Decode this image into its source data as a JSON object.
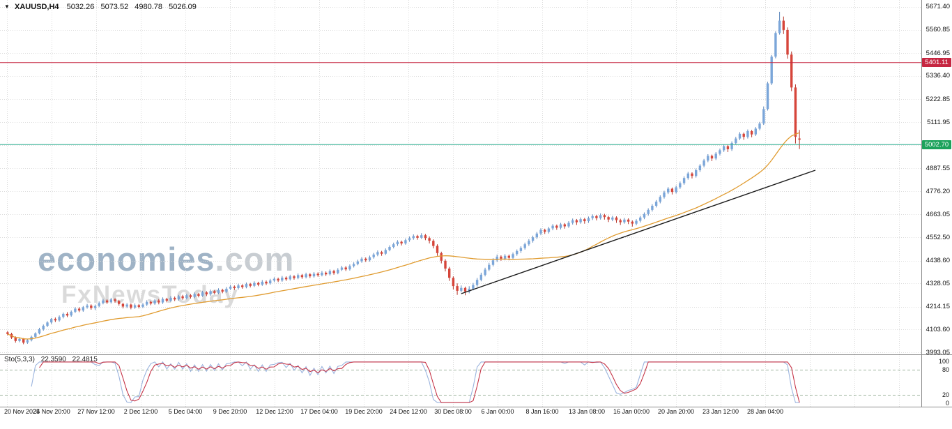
{
  "window": {
    "symbol_period": "XAUUSD,H4",
    "open": "5032.26",
    "high": "5073.52",
    "low": "4980.78",
    "close": "5026.09"
  },
  "icons": {
    "expand_arrow": "▼"
  },
  "watermark": {
    "brand": "economies",
    "brand_suffix": ".com",
    "tagline": "FxNewsToday"
  },
  "price_axis": {
    "label_prices": [
      5671.4,
      5560.85,
      5446.95,
      5336.4,
      5222.85,
      5111.95,
      5000.0,
      4887.55,
      4776.2,
      4663.05,
      4552.5,
      4438.6,
      4328.05,
      4214.15,
      4103.6,
      3993.05
    ],
    "resistance_label": "5401.11",
    "current_label": "5002.70"
  },
  "time_axis": {
    "labels": [
      "20 Nov 2025",
      "24 Nov 20:00",
      "27 Nov 12:00",
      "2 Dec 12:00",
      "5 Dec 04:00",
      "9 Dec 20:00",
      "12 Dec 12:00",
      "17 Dec 04:00",
      "19 Dec 20:00",
      "24 Dec 12:00",
      "30 Dec 08:00",
      "6 Jan 00:00",
      "8 Jan 16:00",
      "13 Jan 08:00",
      "16 Jan 00:00",
      "20 Jan 20:00",
      "23 Jan 12:00",
      "28 Jan 04:00"
    ]
  },
  "indicator": {
    "name_label": "Sto(5,3,3)",
    "main_value": "22.3590",
    "signal_value": "22.4815",
    "axis_values": [
      100,
      80,
      20,
      0
    ],
    "levels": [
      80,
      20
    ]
  },
  "colors": {
    "background": "#ffffff",
    "grid": "#dcdcdc",
    "candle_up": "#7ba6d9",
    "candle_up_wick": "#5d87bb",
    "candle_down": "#d6453a",
    "candle_down_wick": "#b23226",
    "ma_line": "#e09b2f",
    "trendline": "#1a1a1a",
    "resistance_line": "#c62641",
    "resistance_badge_bg": "#c62641",
    "current_line": "#2fae8f",
    "current_badge_bg": "#1ca25b",
    "stoch_main": "#9bb4de",
    "stoch_signal": "#c63649",
    "level_dash": "#9cb39c",
    "axis_text": "#111111",
    "separator": "#8c8c8c",
    "watermark_brand": "#9fb3c6",
    "watermark_suffix": "#c8cdd2",
    "watermark_tagline": "#dadada"
  },
  "chart_data": {
    "type": "candlestick",
    "symbol": "XAUUSD",
    "timeframe": "H4",
    "title": "XAUUSD,H4",
    "ylim": [
      3982.9,
      5705.3
    ],
    "grid": true,
    "candles": [
      [
        4090,
        4096,
        4075,
        4082
      ],
      [
        4082,
        4088,
        4058,
        4065
      ],
      [
        4065,
        4070,
        4040,
        4048
      ],
      [
        4048,
        4064,
        4042,
        4058
      ],
      [
        4058,
        4062,
        4032,
        4040
      ],
      [
        4040,
        4058,
        4034,
        4052
      ],
      [
        4052,
        4074,
        4046,
        4068
      ],
      [
        4068,
        4090,
        4062,
        4085
      ],
      [
        4085,
        4112,
        4080,
        4105
      ],
      [
        4105,
        4128,
        4098,
        4122
      ],
      [
        4122,
        4144,
        4115,
        4138
      ],
      [
        4138,
        4160,
        4130,
        4155
      ],
      [
        4155,
        4162,
        4140,
        4148
      ],
      [
        4148,
        4172,
        4142,
        4165
      ],
      [
        4165,
        4186,
        4158,
        4180
      ],
      [
        4180,
        4188,
        4164,
        4172
      ],
      [
        4172,
        4196,
        4166,
        4190
      ],
      [
        4190,
        4212,
        4184,
        4205
      ],
      [
        4205,
        4212,
        4188,
        4196
      ],
      [
        4196,
        4218,
        4190,
        4212
      ],
      [
        4212,
        4228,
        4205,
        4220
      ],
      [
        4220,
        4226,
        4200,
        4208
      ],
      [
        4208,
        4225,
        4198,
        4218
      ],
      [
        4218,
        4240,
        4212,
        4232
      ],
      [
        4232,
        4252,
        4226,
        4245
      ],
      [
        4245,
        4250,
        4228,
        4236
      ],
      [
        4236,
        4258,
        4230,
        4250
      ],
      [
        4250,
        4256,
        4234,
        4242
      ],
      [
        4242,
        4248,
        4220,
        4228
      ],
      [
        4228,
        4234,
        4206,
        4215
      ],
      [
        4215,
        4232,
        4208,
        4225
      ],
      [
        4225,
        4230,
        4202,
        4210
      ],
      [
        4210,
        4230,
        4204,
        4222
      ],
      [
        4222,
        4228,
        4206,
        4214
      ],
      [
        4214,
        4232,
        4208,
        4225
      ],
      [
        4225,
        4246,
        4218,
        4238
      ],
      [
        4238,
        4244,
        4222,
        4230
      ],
      [
        4230,
        4252,
        4224,
        4245
      ],
      [
        4245,
        4252,
        4226,
        4235
      ],
      [
        4235,
        4260,
        4228,
        4252
      ],
      [
        4252,
        4258,
        4236,
        4244
      ],
      [
        4244,
        4266,
        4238,
        4258
      ],
      [
        4258,
        4264,
        4242,
        4250
      ],
      [
        4250,
        4272,
        4244,
        4265
      ],
      [
        4265,
        4272,
        4248,
        4256
      ],
      [
        4256,
        4278,
        4250,
        4270
      ],
      [
        4270,
        4276,
        4254,
        4262
      ],
      [
        4262,
        4284,
        4256,
        4276
      ],
      [
        4276,
        4282,
        4260,
        4268
      ],
      [
        4268,
        4292,
        4262,
        4284
      ],
      [
        4284,
        4290,
        4266,
        4275
      ],
      [
        4275,
        4298,
        4268,
        4290
      ],
      [
        4290,
        4296,
        4274,
        4282
      ],
      [
        4282,
        4304,
        4276,
        4296
      ],
      [
        4296,
        4302,
        4280,
        4288
      ],
      [
        4288,
        4310,
        4282,
        4302
      ],
      [
        4302,
        4320,
        4296,
        4312
      ],
      [
        4312,
        4318,
        4296,
        4305
      ],
      [
        4305,
        4326,
        4298,
        4318
      ],
      [
        4318,
        4324,
        4302,
        4310
      ],
      [
        4310,
        4332,
        4304,
        4325
      ],
      [
        4325,
        4330,
        4308,
        4316
      ],
      [
        4316,
        4338,
        4310,
        4330
      ],
      [
        4330,
        4336,
        4314,
        4322
      ],
      [
        4322,
        4344,
        4316,
        4336
      ],
      [
        4336,
        4342,
        4320,
        4328
      ],
      [
        4328,
        4350,
        4322,
        4342
      ],
      [
        4342,
        4358,
        4334,
        4350
      ],
      [
        4350,
        4356,
        4334,
        4342
      ],
      [
        4342,
        4364,
        4336,
        4356
      ],
      [
        4356,
        4362,
        4340,
        4348
      ],
      [
        4348,
        4370,
        4342,
        4362
      ],
      [
        4362,
        4368,
        4346,
        4354
      ],
      [
        4354,
        4376,
        4348,
        4368
      ],
      [
        4368,
        4374,
        4350,
        4358
      ],
      [
        4358,
        4380,
        4352,
        4372
      ],
      [
        4372,
        4378,
        4354,
        4362
      ],
      [
        4362,
        4383,
        4356,
        4375
      ],
      [
        4375,
        4382,
        4360,
        4368
      ],
      [
        4368,
        4388,
        4362,
        4380
      ],
      [
        4380,
        4386,
        4364,
        4372
      ],
      [
        4372,
        4396,
        4366,
        4388
      ],
      [
        4388,
        4394,
        4370,
        4378
      ],
      [
        4378,
        4402,
        4372,
        4394
      ],
      [
        4394,
        4413,
        4388,
        4405
      ],
      [
        4405,
        4412,
        4388,
        4396
      ],
      [
        4396,
        4420,
        4390,
        4412
      ],
      [
        4412,
        4430,
        4405,
        4422
      ],
      [
        4422,
        4443,
        4416,
        4435
      ],
      [
        4435,
        4456,
        4428,
        4448
      ],
      [
        4448,
        4454,
        4432,
        4440
      ],
      [
        4440,
        4463,
        4434,
        4455
      ],
      [
        4455,
        4476,
        4448,
        4468
      ],
      [
        4468,
        4488,
        4460,
        4480
      ],
      [
        4480,
        4486,
        4462,
        4472
      ],
      [
        4472,
        4498,
        4466,
        4490
      ],
      [
        4490,
        4513,
        4484,
        4505
      ],
      [
        4505,
        4526,
        4498,
        4518
      ],
      [
        4518,
        4538,
        4510,
        4530
      ],
      [
        4530,
        4536,
        4512,
        4522
      ],
      [
        4522,
        4546,
        4516,
        4538
      ],
      [
        4538,
        4556,
        4530,
        4548
      ],
      [
        4548,
        4566,
        4540,
        4558
      ],
      [
        4558,
        4564,
        4540,
        4550
      ],
      [
        4550,
        4572,
        4544,
        4562
      ],
      [
        4562,
        4568,
        4538,
        4548
      ],
      [
        4548,
        4556,
        4522,
        4535
      ],
      [
        4535,
        4542,
        4498,
        4510
      ],
      [
        4510,
        4518,
        4462,
        4475
      ],
      [
        4475,
        4482,
        4425,
        4438
      ],
      [
        4438,
        4446,
        4386,
        4400
      ],
      [
        4400,
        4408,
        4340,
        4355
      ],
      [
        4355,
        4362,
        4298,
        4315
      ],
      [
        4315,
        4328,
        4272,
        4292
      ],
      [
        4292,
        4318,
        4284,
        4306
      ],
      [
        4306,
        4312,
        4270,
        4288
      ],
      [
        4288,
        4314,
        4280,
        4302
      ],
      [
        4302,
        4330,
        4294,
        4320
      ],
      [
        4320,
        4354,
        4312,
        4345
      ],
      [
        4345,
        4380,
        4338,
        4370
      ],
      [
        4370,
        4404,
        4362,
        4395
      ],
      [
        4395,
        4428,
        4388,
        4418
      ],
      [
        4418,
        4450,
        4410,
        4440
      ],
      [
        4440,
        4468,
        4432,
        4458
      ],
      [
        4458,
        4464,
        4438,
        4448
      ],
      [
        4448,
        4470,
        4440,
        4462
      ],
      [
        4462,
        4468,
        4440,
        4452
      ],
      [
        4452,
        4478,
        4444,
        4470
      ],
      [
        4470,
        4493,
        4462,
        4485
      ],
      [
        4485,
        4508,
        4476,
        4500
      ],
      [
        4500,
        4526,
        4492,
        4518
      ],
      [
        4518,
        4543,
        4510,
        4535
      ],
      [
        4535,
        4560,
        4526,
        4552
      ],
      [
        4552,
        4578,
        4544,
        4570
      ],
      [
        4570,
        4596,
        4562,
        4588
      ],
      [
        4588,
        4594,
        4568,
        4578
      ],
      [
        4578,
        4602,
        4570,
        4595
      ],
      [
        4595,
        4616,
        4586,
        4608
      ],
      [
        4608,
        4614,
        4588,
        4598
      ],
      [
        4598,
        4622,
        4590,
        4615
      ],
      [
        4615,
        4621,
        4594,
        4605
      ],
      [
        4605,
        4630,
        4598,
        4622
      ],
      [
        4622,
        4643,
        4614,
        4635
      ],
      [
        4635,
        4641,
        4612,
        4625
      ],
      [
        4625,
        4648,
        4618,
        4640
      ],
      [
        4640,
        4646,
        4618,
        4630
      ],
      [
        4630,
        4653,
        4622,
        4645
      ],
      [
        4645,
        4663,
        4636,
        4655
      ],
      [
        4655,
        4661,
        4634,
        4645
      ],
      [
        4645,
        4668,
        4638,
        4660
      ],
      [
        4660,
        4666,
        4638,
        4650
      ],
      [
        4650,
        4656,
        4626,
        4638
      ],
      [
        4638,
        4656,
        4630,
        4648
      ],
      [
        4648,
        4654,
        4622,
        4635
      ],
      [
        4635,
        4642,
        4612,
        4625
      ],
      [
        4625,
        4646,
        4618,
        4638
      ],
      [
        4638,
        4644,
        4616,
        4628
      ],
      [
        4628,
        4634,
        4604,
        4618
      ],
      [
        4618,
        4640,
        4610,
        4632
      ],
      [
        4632,
        4656,
        4624,
        4648
      ],
      [
        4648,
        4673,
        4640,
        4665
      ],
      [
        4665,
        4693,
        4657,
        4685
      ],
      [
        4685,
        4713,
        4677,
        4705
      ],
      [
        4705,
        4733,
        4697,
        4725
      ],
      [
        4725,
        4756,
        4717,
        4748
      ],
      [
        4748,
        4778,
        4740,
        4770
      ],
      [
        4770,
        4796,
        4762,
        4788
      ],
      [
        4788,
        4794,
        4760,
        4772
      ],
      [
        4772,
        4803,
        4764,
        4795
      ],
      [
        4795,
        4823,
        4787,
        4815
      ],
      [
        4815,
        4848,
        4807,
        4840
      ],
      [
        4840,
        4870,
        4832,
        4862
      ],
      [
        4862,
        4868,
        4838,
        4850
      ],
      [
        4850,
        4886,
        4842,
        4878
      ],
      [
        4878,
        4908,
        4870,
        4900
      ],
      [
        4900,
        4933,
        4892,
        4925
      ],
      [
        4925,
        4956,
        4917,
        4948
      ],
      [
        4948,
        4954,
        4922,
        4935
      ],
      [
        4935,
        4966,
        4927,
        4958
      ],
      [
        4958,
        4983,
        4950,
        4975
      ],
      [
        4975,
        5003,
        4967,
        4995
      ],
      [
        4995,
        5001,
        4966,
        4980
      ],
      [
        4980,
        5018,
        4972,
        5010
      ],
      [
        5010,
        5040,
        5002,
        5032
      ],
      [
        5032,
        5063,
        5024,
        5055
      ],
      [
        5055,
        5061,
        5026,
        5040
      ],
      [
        5040,
        5076,
        5032,
        5068
      ],
      [
        5068,
        5074,
        5038,
        5052
      ],
      [
        5052,
        5088,
        5044,
        5080
      ],
      [
        5080,
        5113,
        5072,
        5105
      ],
      [
        5105,
        5188,
        5098,
        5175
      ],
      [
        5175,
        5308,
        5168,
        5300
      ],
      [
        5300,
        5438,
        5292,
        5430
      ],
      [
        5430,
        5553,
        5422,
        5545
      ],
      [
        5545,
        5648,
        5537,
        5605
      ],
      [
        5605,
        5625,
        5540,
        5560
      ],
      [
        5560,
        5572,
        5420,
        5440
      ],
      [
        5440,
        5455,
        5262,
        5280
      ],
      [
        5280,
        5295,
        5008,
        5040
      ],
      [
        5032.26,
        5073.52,
        4980.78,
        5026.09
      ]
    ],
    "overlays": {
      "ma": {
        "period": 34
      },
      "trendline": {
        "from": {
          "index": 114,
          "price": 4278
        },
        "to": {
          "index": 203,
          "price": 4878
        }
      },
      "hlines": [
        {
          "price": 5401.11,
          "label": "5401.11",
          "role": "resistance"
        },
        {
          "price": 5002.7,
          "label": "5002.70",
          "role": "current-price"
        }
      ]
    },
    "indicator_pane": {
      "type": "stochastic",
      "k": 5,
      "d": 3,
      "slowing": 3,
      "range": [
        0,
        100
      ],
      "levels": [
        80,
        20
      ],
      "last_main": 22.359,
      "last_signal": 22.4815
    }
  }
}
